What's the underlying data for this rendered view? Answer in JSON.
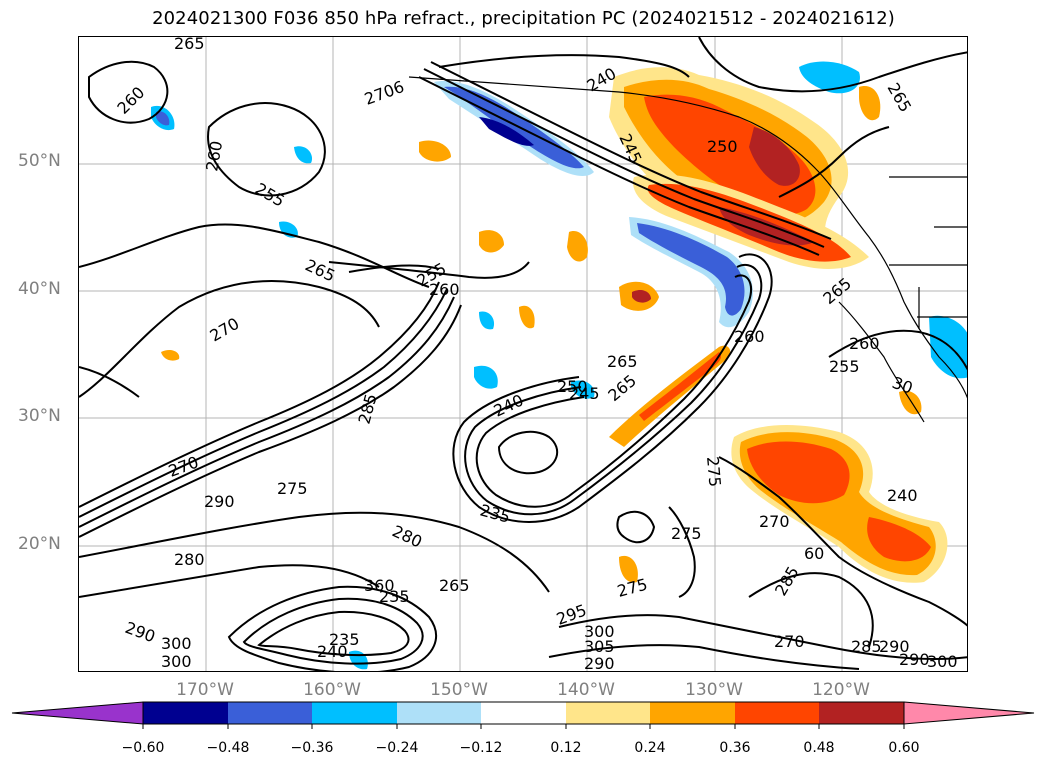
{
  "title": "2024021300 F036 850 hPa refract., precipitation PC (2024021512 - 2024021612)",
  "map": {
    "lat_labels": [
      "50°N",
      "40°N",
      "30°N",
      "20°N"
    ],
    "lon_labels": [
      "170°W",
      "160°W",
      "150°W",
      "140°W",
      "130°W",
      "120°W"
    ],
    "grid": true,
    "projection_region": "North-East Pacific / western North America",
    "contour_labels": [
      "265",
      "260",
      "2706",
      "260",
      "255",
      "245",
      "240",
      "250",
      "265",
      "265",
      "255",
      "260",
      "270",
      "265",
      "260",
      "255",
      "30",
      "265",
      "285",
      "250",
      "245",
      "240",
      "260",
      "265",
      "275",
      "270",
      "290",
      "275",
      "235",
      "280",
      "280",
      "275",
      "275",
      "270",
      "60",
      "240",
      "285",
      "360",
      "265",
      "235",
      "235",
      "240",
      "290",
      "295",
      "300",
      "305",
      "290",
      "300",
      "300",
      "270",
      "285",
      "290",
      "290",
      "300"
    ],
    "colors": {
      "positive": [
        "#ffe58a",
        "#ffa500",
        "#ff4500",
        "#b22222",
        "#ff88aa"
      ],
      "negative": [
        "#aee0f8",
        "#00bfff",
        "#3a5fd8",
        "#000090",
        "#9933cc"
      ],
      "contour": "#000000",
      "coast": "#000000"
    }
  },
  "colorbar": {
    "ticks": [
      "−0.60",
      "−0.48",
      "−0.36",
      "−0.24",
      "−0.12",
      "0.12",
      "0.24",
      "0.36",
      "0.48",
      "0.60"
    ],
    "colors": [
      "#9933cc",
      "#000090",
      "#3a5fd8",
      "#00bfff",
      "#aee0f8",
      "#ffffff",
      "#ffe58a",
      "#ffa500",
      "#ff4500",
      "#b22222",
      "#ff88aa"
    ],
    "extend": "both"
  }
}
